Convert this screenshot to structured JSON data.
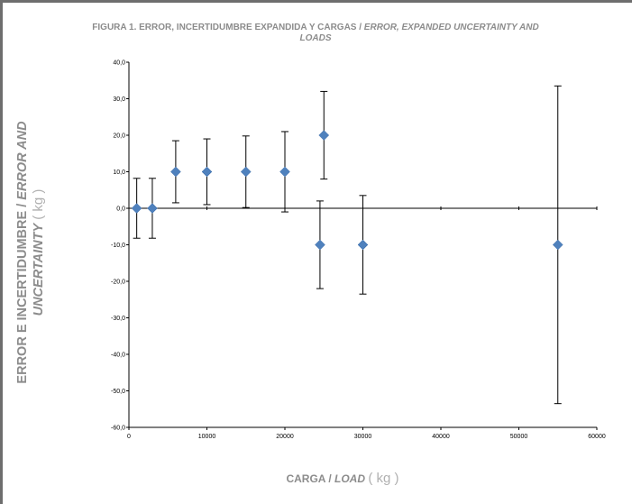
{
  "chart_data": {
    "type": "scatter",
    "title_main": "FIGURA 1.  ERROR, INCERTIDUMBRE EXPANDIDA Y CARGAS / ",
    "title_italic": "ERROR, EXPANDED UNCERTAINTY AND LOADS",
    "ylabel_main": "ERROR E INCERTIDUMBRE / ",
    "ylabel_italic": "ERROR AND UNCERTAINTY",
    "ylabel_unit": "( kg )",
    "xlabel_main": "CARGA / ",
    "xlabel_italic": "LOAD",
    "xlabel_unit": "( kg )",
    "xlim": [
      0,
      60000
    ],
    "ylim": [
      -60,
      40
    ],
    "x_ticks": [
      "0",
      "10000",
      "20000",
      "30000",
      "40000",
      "50000",
      "60000"
    ],
    "y_ticks": [
      "40,0",
      "30,0",
      "20,0",
      "10,0",
      "0,0",
      "-10,0",
      "-20,0",
      "-30,0",
      "-40,0",
      "-50,0",
      "-60,0"
    ],
    "points": [
      {
        "x": 1000,
        "y": 0,
        "lo": -8.2,
        "hi": 8.2
      },
      {
        "x": 3000,
        "y": 0,
        "lo": -8.2,
        "hi": 8.2
      },
      {
        "x": 6000,
        "y": 10,
        "lo": 1.5,
        "hi": 18.5
      },
      {
        "x": 10000,
        "y": 10,
        "lo": 1,
        "hi": 19
      },
      {
        "x": 15000,
        "y": 10,
        "lo": 0.2,
        "hi": 19.8
      },
      {
        "x": 20000,
        "y": 10,
        "lo": -1,
        "hi": 21
      },
      {
        "x": 25000,
        "y": 20,
        "lo": 8,
        "hi": 32
      },
      {
        "x": 24500,
        "y": -10,
        "lo": -22,
        "hi": 2
      },
      {
        "x": 30000,
        "y": -10,
        "lo": -23.5,
        "hi": 3.5
      },
      {
        "x": 55000,
        "y": -10,
        "lo": -53.5,
        "hi": 33.5
      }
    ],
    "marker_color": "#4f81bd",
    "grid": false
  }
}
